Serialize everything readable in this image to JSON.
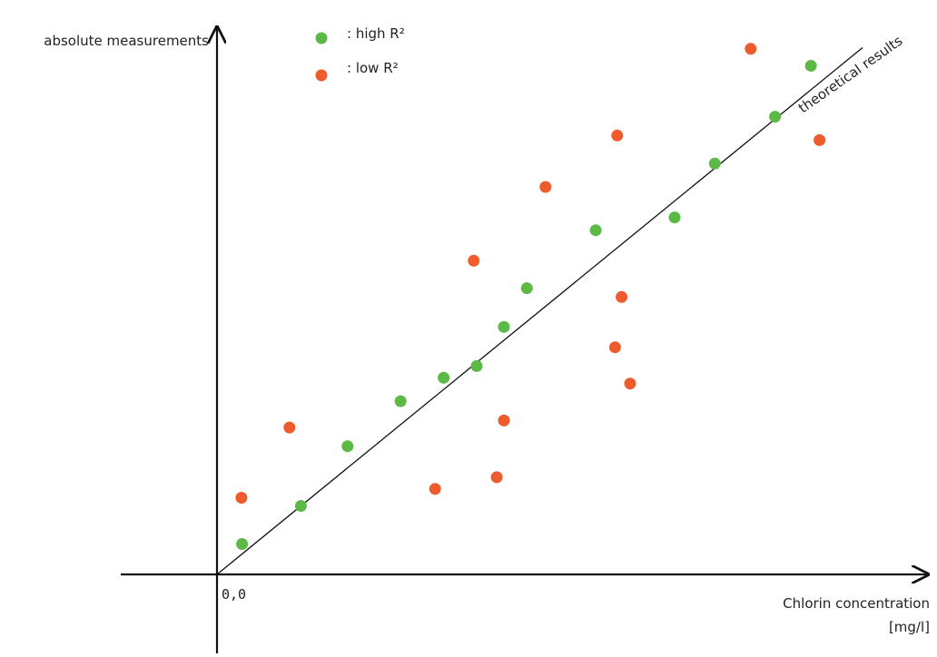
{
  "chart_data": {
    "type": "scatter",
    "title": "",
    "ylabel": "absolute measurements",
    "xlabel_line1": "Chlorin concentration",
    "xlabel_line2": "[mg/l]",
    "origin_label": "0,0",
    "line_label": "theoretical results",
    "xlim": [
      0,
      10
    ],
    "ylim": [
      0,
      10
    ],
    "legend_position": "top-left",
    "grid": false,
    "colors": {
      "high": "#5cb946",
      "low": "#ee5b2c",
      "axis": "#111111"
    },
    "series": [
      {
        "name": ": high R²",
        "marker_color": "#5cb946",
        "x": [
          0.35,
          1.17,
          1.82,
          2.56,
          3.16,
          3.62,
          4.0,
          4.32,
          5.28,
          6.38,
          6.94,
          7.78,
          8.28
        ],
        "y": [
          0.52,
          1.17,
          2.19,
          2.96,
          3.36,
          3.56,
          4.23,
          4.89,
          5.88,
          6.1,
          7.02,
          7.82,
          8.69
        ]
      },
      {
        "name": ": low R²",
        "marker_color": "#ee5b2c",
        "x": [
          0.34,
          1.01,
          3.04,
          3.9,
          4.0,
          3.58,
          4.58,
          5.58,
          5.64,
          5.55,
          5.76,
          7.44,
          8.4
        ],
        "y": [
          1.31,
          2.51,
          1.46,
          1.66,
          2.63,
          5.36,
          6.62,
          7.5,
          4.74,
          3.88,
          3.26,
          8.98,
          7.42
        ]
      }
    ],
    "theoretical_line": {
      "x": [
        0,
        9.0
      ],
      "y": [
        0,
        9.0
      ]
    }
  }
}
